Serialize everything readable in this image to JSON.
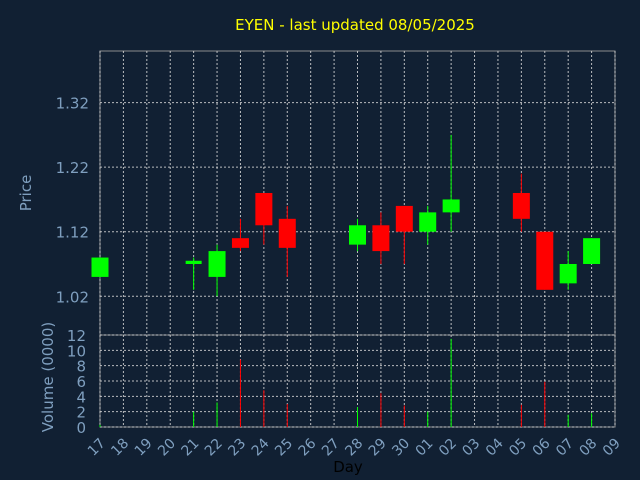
{
  "title": "EYEN - last updated 08/05/2025",
  "colors": {
    "background": "#112033",
    "title": "#ffff00",
    "axis_text": "#7f9fbf",
    "frame": "#8c8c8c",
    "up": "#00ff00",
    "down": "#ff0000"
  },
  "chart_data": [
    {
      "type": "candlestick",
      "ylabel": "Price",
      "ylim": [
        0.96,
        1.4
      ],
      "yticks": [
        1.02,
        1.12,
        1.22,
        1.32
      ],
      "ytick_labels": [
        "1.02",
        "1.12",
        "1.22",
        "1.32"
      ],
      "grid": true,
      "x": [
        "17",
        "21",
        "22",
        "23",
        "24",
        "25",
        "28",
        "29",
        "30",
        "01",
        "02",
        "05",
        "06",
        "07",
        "08"
      ],
      "series": [
        {
          "day": "17",
          "open": 1.05,
          "high": 1.08,
          "low": 1.05,
          "close": 1.08
        },
        {
          "day": "21",
          "open": 1.07,
          "high": 1.08,
          "low": 1.03,
          "close": 1.075
        },
        {
          "day": "22",
          "open": 1.05,
          "high": 1.1,
          "low": 1.02,
          "close": 1.09
        },
        {
          "day": "23",
          "open": 1.11,
          "high": 1.14,
          "low": 1.09,
          "close": 1.095
        },
        {
          "day": "24",
          "open": 1.18,
          "high": 1.18,
          "low": 1.1,
          "close": 1.13
        },
        {
          "day": "25",
          "open": 1.14,
          "high": 1.16,
          "low": 1.05,
          "close": 1.095
        },
        {
          "day": "28",
          "open": 1.1,
          "high": 1.14,
          "low": 1.09,
          "close": 1.13
        },
        {
          "day": "29",
          "open": 1.13,
          "high": 1.15,
          "low": 1.07,
          "close": 1.09
        },
        {
          "day": "30",
          "open": 1.16,
          "high": 1.16,
          "low": 1.07,
          "close": 1.12
        },
        {
          "day": "01",
          "open": 1.12,
          "high": 1.16,
          "low": 1.1,
          "close": 1.15
        },
        {
          "day": "02",
          "open": 1.15,
          "high": 1.27,
          "low": 1.12,
          "close": 1.17
        },
        {
          "day": "05",
          "open": 1.18,
          "high": 1.21,
          "low": 1.12,
          "close": 1.14
        },
        {
          "day": "06",
          "open": 1.12,
          "high": 1.12,
          "low": 1.03,
          "close": 1.03
        },
        {
          "day": "07",
          "open": 1.04,
          "high": 1.09,
          "low": 1.03,
          "close": 1.07
        },
        {
          "day": "08",
          "open": 1.07,
          "high": 1.11,
          "low": 1.07,
          "close": 1.11
        }
      ]
    },
    {
      "type": "bar",
      "xlabel": "Day",
      "ylabel": "Volume (0000)",
      "ylim": [
        0,
        12
      ],
      "yticks": [
        0,
        2,
        4,
        6,
        8,
        10,
        12
      ],
      "ytick_labels": [
        "0",
        "2",
        "4",
        "6",
        "8",
        "10",
        "12"
      ],
      "grid": true,
      "categories": [
        "17",
        "18",
        "19",
        "20",
        "21",
        "22",
        "23",
        "24",
        "25",
        "26",
        "27",
        "28",
        "29",
        "30",
        "01",
        "02",
        "03",
        "04",
        "05",
        "06",
        "07",
        "08",
        "09"
      ],
      "values": [
        {
          "day": "17",
          "volume": 0.3,
          "direction": "up"
        },
        {
          "day": "21",
          "volume": 2.0,
          "direction": "up"
        },
        {
          "day": "22",
          "volume": 3.2,
          "direction": "up"
        },
        {
          "day": "23",
          "volume": 8.8,
          "direction": "down"
        },
        {
          "day": "24",
          "volume": 4.8,
          "direction": "down"
        },
        {
          "day": "25",
          "volume": 3.0,
          "direction": "down"
        },
        {
          "day": "28",
          "volume": 2.6,
          "direction": "up"
        },
        {
          "day": "29",
          "volume": 4.4,
          "direction": "down"
        },
        {
          "day": "30",
          "volume": 2.8,
          "direction": "down"
        },
        {
          "day": "01",
          "volume": 2.0,
          "direction": "up"
        },
        {
          "day": "02",
          "volume": 11.5,
          "direction": "up"
        },
        {
          "day": "05",
          "volume": 2.9,
          "direction": "down"
        },
        {
          "day": "06",
          "volume": 5.9,
          "direction": "down"
        },
        {
          "day": "07",
          "volume": 1.6,
          "direction": "up"
        },
        {
          "day": "08",
          "volume": 1.8,
          "direction": "up"
        }
      ]
    }
  ]
}
